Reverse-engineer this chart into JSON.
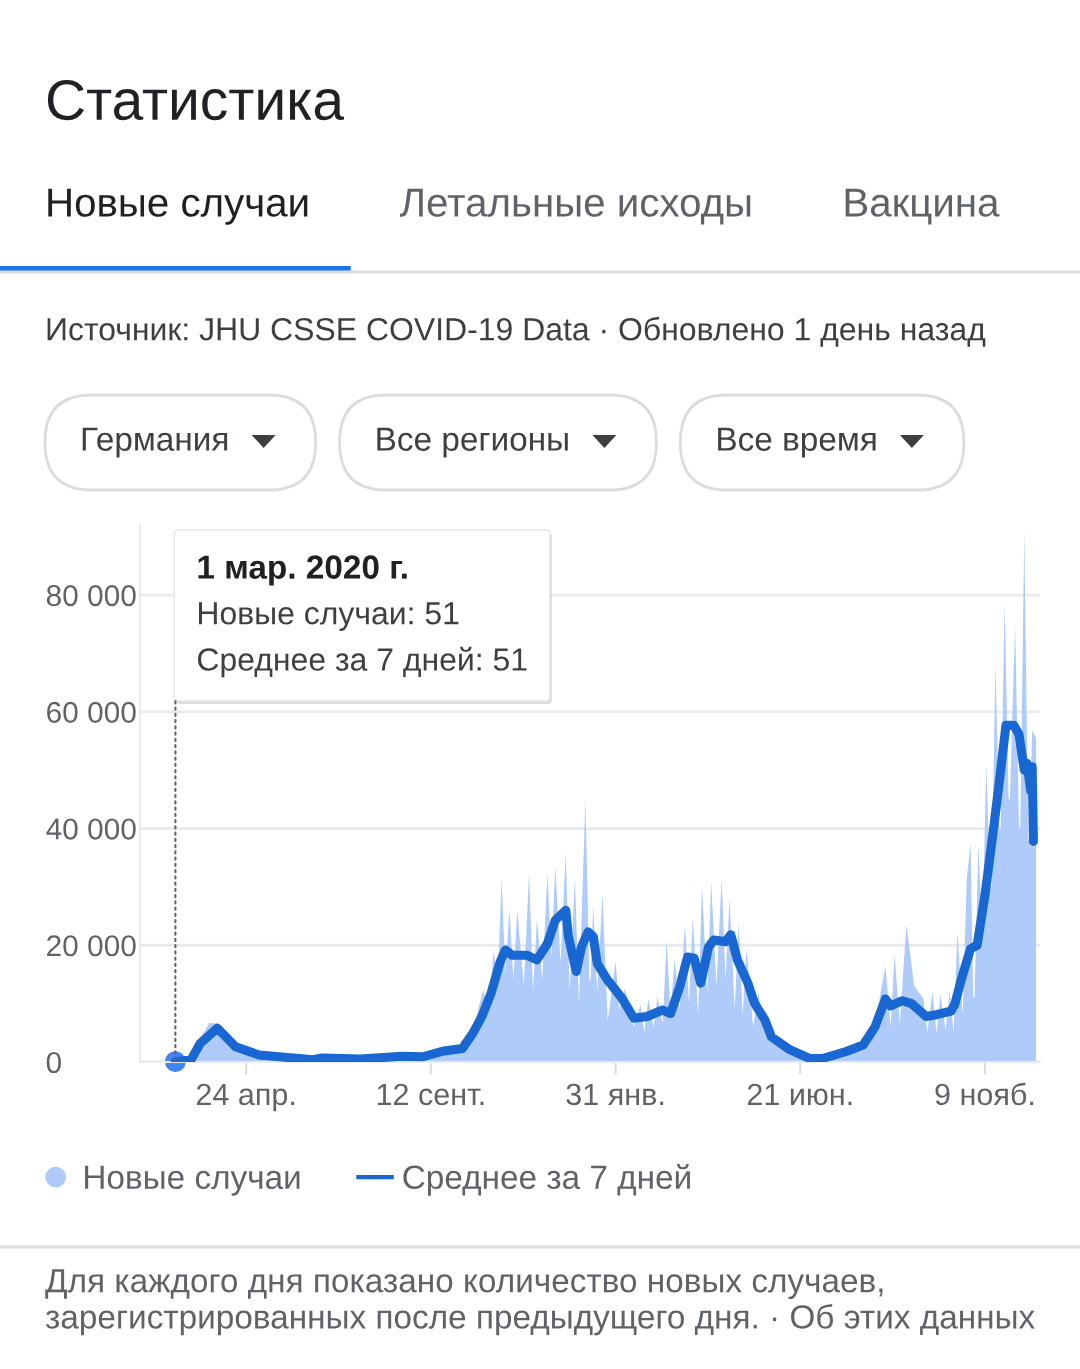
{
  "chart_data": {
    "type": "area",
    "title": "Статистика",
    "subtitle": "Источник: JHU CSSE COVID-19 Data · Обновлено 1 день назад",
    "annotations": [
      {
        "text": "1 мар. 2020 г.\nНовые случаи: 51\nСреднее за 7 дней: 51",
        "x": "2020-03-01",
        "y": 51
      },
      "Новые случаи",
      "Летальные исходы",
      "Вакцина",
      "Германия",
      "Все регионы",
      "Все время",
      "Для каждого дня показано количество новых случаев, зарегистрированных после предыдущего дня. · Об этих данных"
    ],
    "series": [
      {
        "name": "Новые случаи",
        "color": "#aecbfa",
        "x": [
          "2020-03-01",
          "2020-03-13",
          "2020-03-20",
          "2020-03-27",
          "2020-04-02",
          "2020-04-10",
          "2020-04-20",
          "2020-05-05",
          "2020-06-01",
          "2020-06-14",
          "2020-06-21",
          "2020-07-20",
          "2020-08-21",
          "2020-09-06",
          "2020-09-22",
          "2020-10-06",
          "2020-10-14",
          "2020-10-17",
          "2020-10-22",
          "2020-10-26",
          "2020-10-30",
          "2020-11-02",
          "2020-11-05",
          "2020-11-08",
          "2020-11-11",
          "2020-11-14",
          "2020-11-17",
          "2020-11-22",
          "2020-11-26",
          "2020-11-29",
          "2020-12-02",
          "2020-12-06",
          "2020-12-10",
          "2020-12-13",
          "2020-12-16",
          "2020-12-20",
          "2020-12-24",
          "2020-12-27",
          "2020-12-31",
          "2021-01-03",
          "2021-01-08",
          "2021-01-11",
          "2021-01-12",
          "2021-01-14",
          "2021-01-17",
          "2021-01-21",
          "2021-01-25",
          "2021-01-31",
          "2021-02-03",
          "2021-02-07",
          "2021-02-14",
          "2021-02-19",
          "2021-02-22",
          "2021-02-25",
          "2021-03-01",
          "2021-03-04",
          "2021-03-08",
          "2021-03-11",
          "2021-03-14",
          "2021-03-17",
          "2021-03-21",
          "2021-03-25",
          "2021-03-28",
          "2021-03-31",
          "2021-04-04",
          "2021-04-07",
          "2021-04-11",
          "2021-04-14",
          "2021-04-18",
          "2021-04-22",
          "2021-04-25",
          "2021-04-28",
          "2021-05-02",
          "2021-05-05",
          "2021-05-08",
          "2021-05-11",
          "2021-05-16",
          "2021-05-20",
          "2021-05-25",
          "2021-05-30",
          "2021-06-13",
          "2021-06-28",
          "2021-07-08",
          "2021-07-26",
          "2021-08-08",
          "2021-08-17",
          "2021-08-25",
          "2021-08-29",
          "2021-09-01",
          "2021-09-05",
          "2021-09-10",
          "2021-09-16",
          "2021-09-23",
          "2021-09-26",
          "2021-09-30",
          "2021-10-03",
          "2021-10-06",
          "2021-10-10",
          "2021-10-13",
          "2021-10-16",
          "2021-10-19",
          "2021-10-23",
          "2021-10-26",
          "2021-10-29",
          "2021-10-31",
          "2021-11-01",
          "2021-11-04",
          "2021-11-07",
          "2021-11-10",
          "2021-11-13",
          "2021-11-14",
          "2021-11-17",
          "2021-11-20",
          "2021-11-21",
          "2021-11-24",
          "2021-11-27",
          "2021-11-28",
          "2021-12-02",
          "2021-12-05",
          "2021-12-06",
          "2021-12-09",
          "2021-12-12",
          "2021-12-13",
          "2021-12-15",
          "2021-12-18"
        ],
        "values": [
          51,
          700,
          4100,
          6700,
          6600,
          4300,
          2200,
          1200,
          500,
          400,
          900,
          500,
          1500,
          1000,
          2200,
          3000,
          5500,
          8000,
          12300,
          9000,
          19200,
          13000,
          31300,
          15000,
          26300,
          14000,
          26000,
          13000,
          32500,
          12000,
          24600,
          14000,
          32400,
          18000,
          33600,
          17000,
          35900,
          12000,
          31700,
          10000,
          45100,
          14000,
          14000,
          27000,
          12000,
          28800,
          7000,
          17200,
          9000,
          12600,
          6000,
          9800,
          5000,
          10900,
          6000,
          11200,
          6500,
          21000,
          8000,
          17800,
          9000,
          23600,
          10000,
          24900,
          8000,
          30300,
          11500,
          30900,
          13000,
          31500,
          14000,
          28000,
          9000,
          24000,
          8000,
          19500,
          6000,
          11800,
          5000,
          4000,
          2000,
          700,
          700,
          1900,
          3200,
          6500,
          16400,
          6000,
          18500,
          6500,
          23500,
          13000,
          10900,
          5000,
          12100,
          5000,
          11500,
          5500,
          12100,
          5000,
          22200,
          8000,
          31100,
          37500,
          11000,
          11000,
          37500,
          22000,
          50800,
          30000,
          30000,
          68100,
          40000,
          40000,
          78800,
          45000,
          45000,
          75100,
          40000,
          40000,
          91100,
          38000,
          38000,
          56800,
          55500
        ]
      },
      {
        "name": "Среднее за 7 дней",
        "type": "line",
        "color": "#1967d2",
        "x": [
          "2020-03-01",
          "2020-03-13",
          "2020-03-20",
          "2020-04-02",
          "2020-04-16",
          "2020-05-04",
          "2020-06-14",
          "2020-06-21",
          "2020-07-20",
          "2020-08-21",
          "2020-09-06",
          "2020-09-22",
          "2020-10-06",
          "2020-10-14",
          "2020-10-21",
          "2020-10-28",
          "2020-11-04",
          "2020-11-08",
          "2020-11-13",
          "2020-11-24",
          "2020-12-02",
          "2020-12-10",
          "2020-12-16",
          "2020-12-24",
          "2020-12-26",
          "2021-01-01",
          "2021-01-05",
          "2021-01-10",
          "2021-01-14",
          "2021-01-17",
          "2021-01-25",
          "2021-02-05",
          "2021-02-14",
          "2021-02-24",
          "2021-03-08",
          "2021-03-14",
          "2021-03-21",
          "2021-03-27",
          "2021-04-01",
          "2021-04-06",
          "2021-04-12",
          "2021-04-16",
          "2021-04-25",
          "2021-04-29",
          "2021-05-04",
          "2021-05-12",
          "2021-05-17",
          "2021-05-25",
          "2021-05-30",
          "2021-06-13",
          "2021-06-28",
          "2021-07-08",
          "2021-07-26",
          "2021-08-08",
          "2021-08-17",
          "2021-08-25",
          "2021-08-29",
          "2021-09-07",
          "2021-09-14",
          "2021-09-25",
          "2021-10-03",
          "2021-10-14",
          "2021-10-17",
          "2021-10-22",
          "2021-10-29",
          "2021-11-03",
          "2021-11-09",
          "2021-11-16",
          "2021-11-21",
          "2021-11-25",
          "2021-12-01",
          "2021-12-05",
          "2021-12-09",
          "2021-12-11",
          "2021-12-14",
          "2021-12-15",
          "2021-12-16"
        ],
        "values": [
          51,
          400,
          3200,
          5800,
          2600,
          1200,
          400,
          700,
          500,
          1000,
          900,
          1900,
          2300,
          4900,
          7800,
          11800,
          17200,
          19200,
          18300,
          18300,
          17500,
          20300,
          24300,
          26000,
          21500,
          15500,
          19700,
          22300,
          21500,
          16900,
          14000,
          10900,
          7500,
          7800,
          8900,
          8300,
          12900,
          18000,
          17800,
          13500,
          19700,
          20900,
          20600,
          21800,
          17500,
          13500,
          10100,
          7200,
          4300,
          2100,
          600,
          600,
          1800,
          2900,
          6000,
          10800,
          9600,
          10500,
          10000,
          7800,
          8100,
          8700,
          9900,
          14200,
          19400,
          20000,
          28600,
          40800,
          50000,
          57700,
          57700,
          56100,
          50000,
          51200,
          46400,
          50600,
          37800
        ]
      }
    ],
    "xlim": [
      "2020-02-03",
      "2021-12-21"
    ],
    "xticks": [
      {
        "value": "2020-04-24",
        "label": "24 апр."
      },
      {
        "value": "2020-09-12",
        "label": "12 сент."
      },
      {
        "value": "2021-01-31",
        "label": "31 янв."
      },
      {
        "value": "2021-06-21",
        "label": "21 июн."
      },
      {
        "value": "2021-11-09",
        "label": "9 нояб."
      }
    ],
    "ylim": [
      0,
      92000
    ],
    "yticks": [
      0,
      {
        "value": 20000,
        "label": "20 000"
      },
      {
        "value": 40000,
        "label": "40 000"
      },
      {
        "value": 60000,
        "label": "60 000"
      },
      {
        "value": 80000,
        "label": "80 000"
      }
    ],
    "grid": "y",
    "legend": "bottom"
  }
}
